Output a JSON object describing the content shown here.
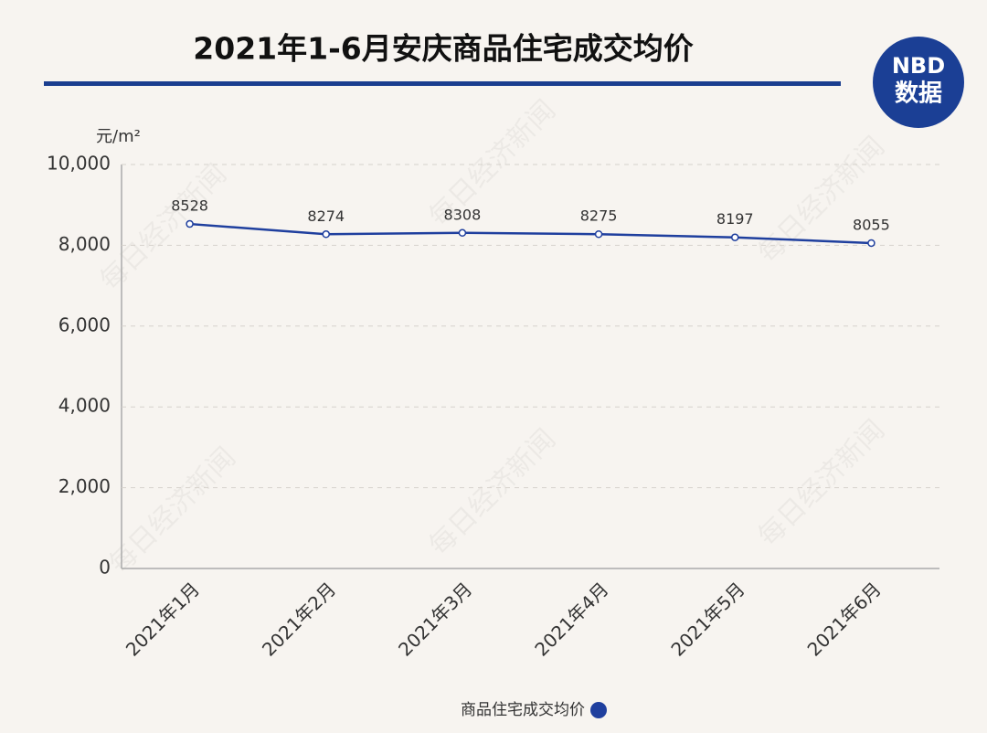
{
  "chart_data": {
    "type": "line",
    "title": "2021年1-6月安庆商品住宅成交均价",
    "y_label": "元/m²",
    "watermark": "每日经济新闻",
    "logo": {
      "top": "NBD",
      "bottom": "数据"
    },
    "categories": [
      "2021年1月",
      "2021年2月",
      "2021年3月",
      "2021年4月",
      "2021年5月",
      "2021年6月"
    ],
    "series": [
      {
        "name": "商品住宅成交均价",
        "color": "#1f3f9e",
        "values": [
          8528,
          8274,
          8308,
          8275,
          8197,
          8055
        ]
      }
    ],
    "ylim": [
      0,
      10000
    ],
    "yticks": [
      0,
      {
        "value": 2000,
        "label": "2,000"
      },
      {
        "value": 4000,
        "label": "4,000"
      },
      {
        "value": 6000,
        "label": "6,000"
      },
      {
        "value": 8000,
        "label": "8,000"
      },
      {
        "value": 10000,
        "label": "10,000"
      }
    ],
    "grid": true,
    "legend": "bottom"
  }
}
